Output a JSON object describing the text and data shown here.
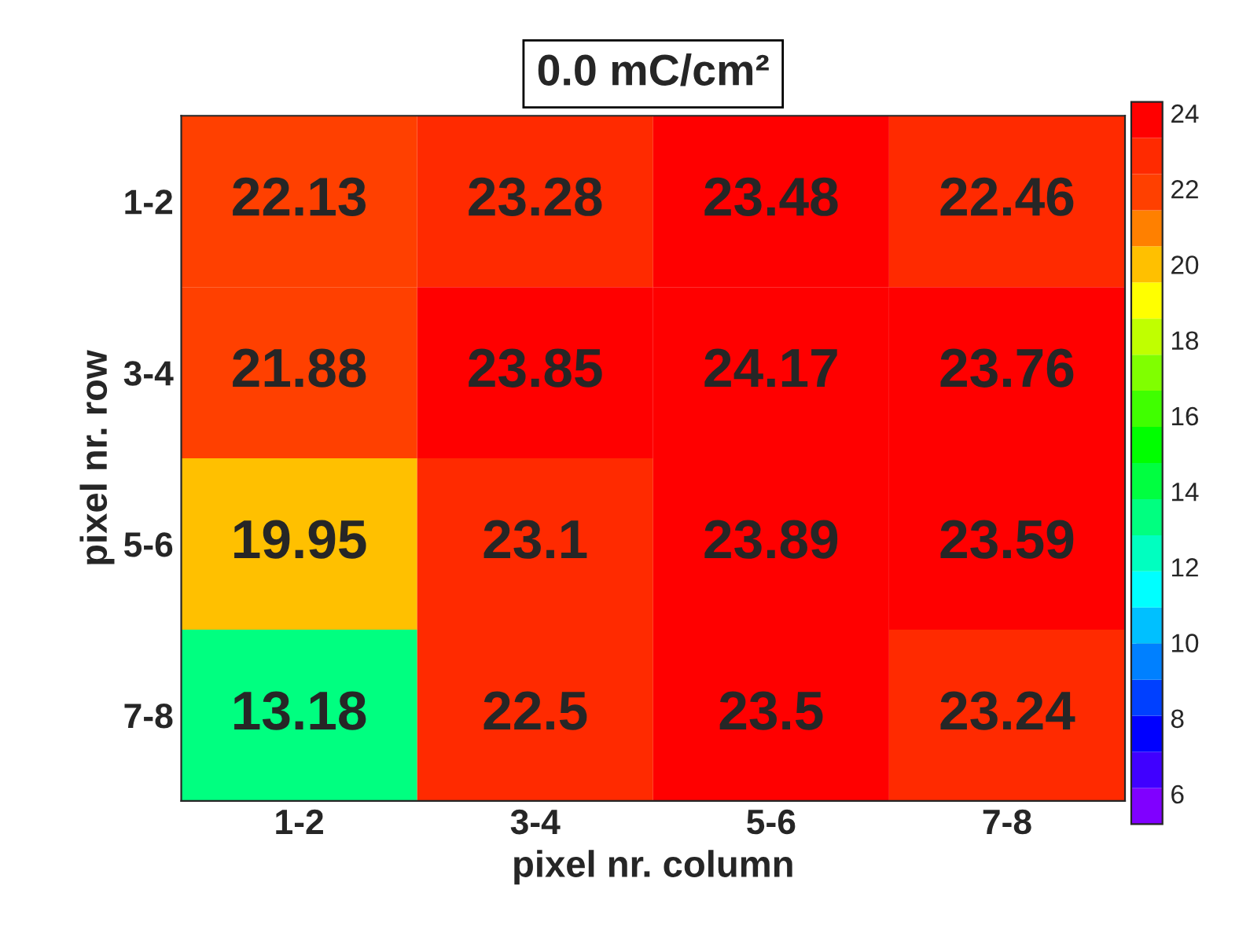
{
  "chart_data": {
    "type": "heatmap",
    "title": "0.0 mC/cm²",
    "xlabel": "pixel nr. column",
    "ylabel": "pixel nr. row",
    "categories": [
      "1-2",
      "3-4",
      "5-6",
      "7-8"
    ],
    "y_categories": [
      "1-2",
      "3-4",
      "5-6",
      "7-8"
    ],
    "cells": [
      [
        22.13,
        23.28,
        23.48,
        22.46
      ],
      [
        21.88,
        23.85,
        24.17,
        23.76
      ],
      [
        19.95,
        23.1,
        23.89,
        23.59
      ],
      [
        13.18,
        22.5,
        23.5,
        23.24
      ]
    ],
    "data_labels": true,
    "clim": [
      5.2,
      24.3
    ],
    "cticks": [
      6,
      8,
      10,
      12,
      14,
      16,
      18,
      20,
      22,
      24
    ]
  }
}
